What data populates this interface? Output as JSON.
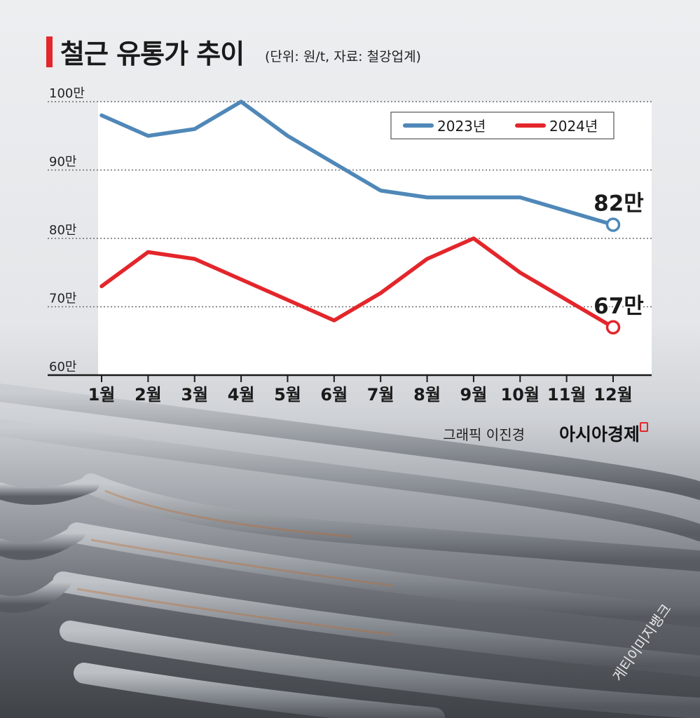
{
  "header": {
    "title": "철근 유통가 추이",
    "unit_note": "(단위: 원/t, 자료: 철강업계)"
  },
  "footer": {
    "credit": "그래픽 이진경",
    "brand": "아시아경제",
    "watermark": "게티이미지뱅크"
  },
  "colors": {
    "series_2023": "#4f88b8",
    "series_2024": "#e3262b",
    "accent": "#e3262b"
  },
  "chart_data": {
    "type": "line",
    "title": "철근 유통가 추이",
    "xlabel": "",
    "ylabel": "",
    "categories": [
      "1월",
      "2월",
      "3월",
      "4월",
      "5월",
      "6월",
      "7월",
      "8월",
      "9월",
      "10월",
      "11월",
      "12월"
    ],
    "y_ticks": [
      "60만",
      "70만",
      "80만",
      "90만",
      "100만"
    ],
    "ylim": [
      600000,
      1000000
    ],
    "grid": true,
    "legend": "top-right",
    "series": [
      {
        "name": "2023년",
        "values": [
          980000,
          950000,
          960000,
          1000000,
          950000,
          910000,
          870000,
          860000,
          860000,
          860000,
          840000,
          820000
        ],
        "end_label": "82만"
      },
      {
        "name": "2024년",
        "values": [
          730000,
          780000,
          770000,
          740000,
          710000,
          680000,
          720000,
          770000,
          800000,
          750000,
          710000,
          670000
        ],
        "end_label": "67만"
      }
    ]
  }
}
